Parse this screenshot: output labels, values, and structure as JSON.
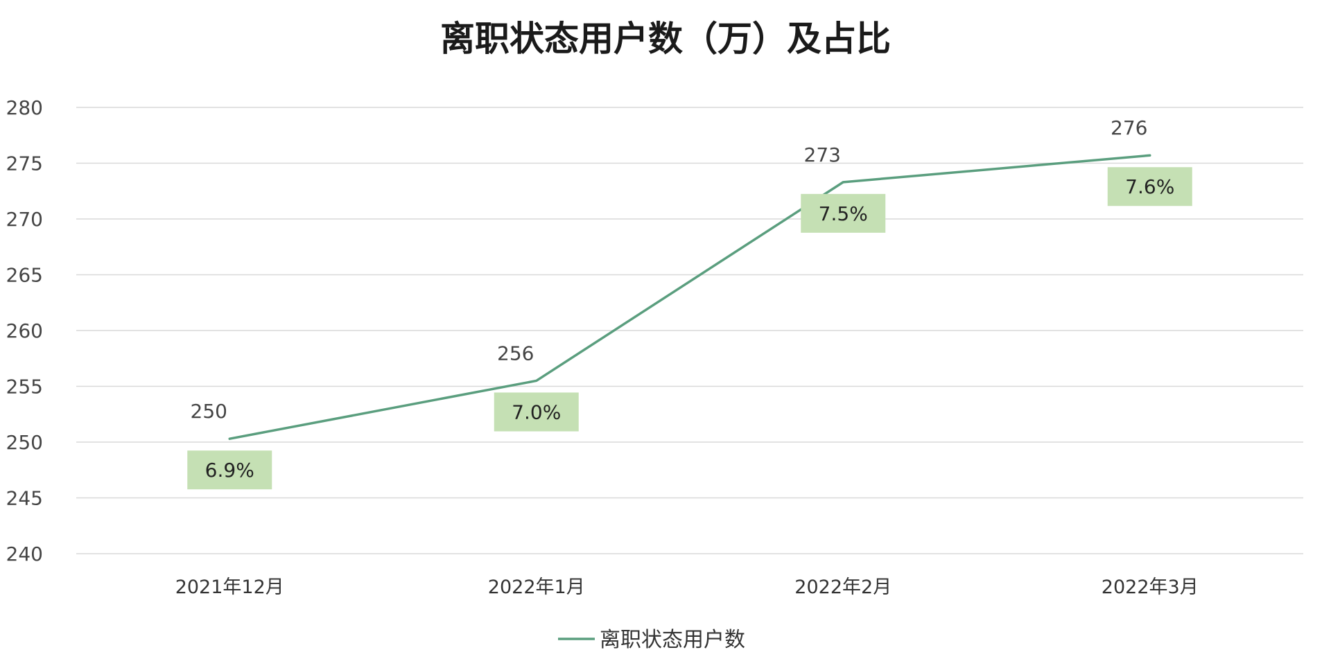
{
  "chart_data": {
    "type": "line",
    "title": "离职状态用户数（万）及占比",
    "categories": [
      "2021年12月",
      "2022年1月",
      "2022年2月",
      "2022年3月"
    ],
    "series": [
      {
        "name": "离职状态用户数",
        "values": [
          250.3,
          255.5,
          273.3,
          275.7
        ],
        "value_labels": [
          "250",
          "256",
          "273",
          "276"
        ],
        "share_labels": [
          "6.9%",
          "7.0%",
          "7.5%",
          "7.6%"
        ]
      }
    ],
    "yticks": [
      "240",
      "245",
      "250",
      "255",
      "260",
      "265",
      "270",
      "275",
      "280"
    ],
    "ylim": [
      240,
      280
    ],
    "grid": true,
    "legend": "bottom",
    "colors": {
      "line": "#5a9e7e",
      "share_box": "#c5e0b4",
      "grid": "#d9d9d9"
    }
  }
}
